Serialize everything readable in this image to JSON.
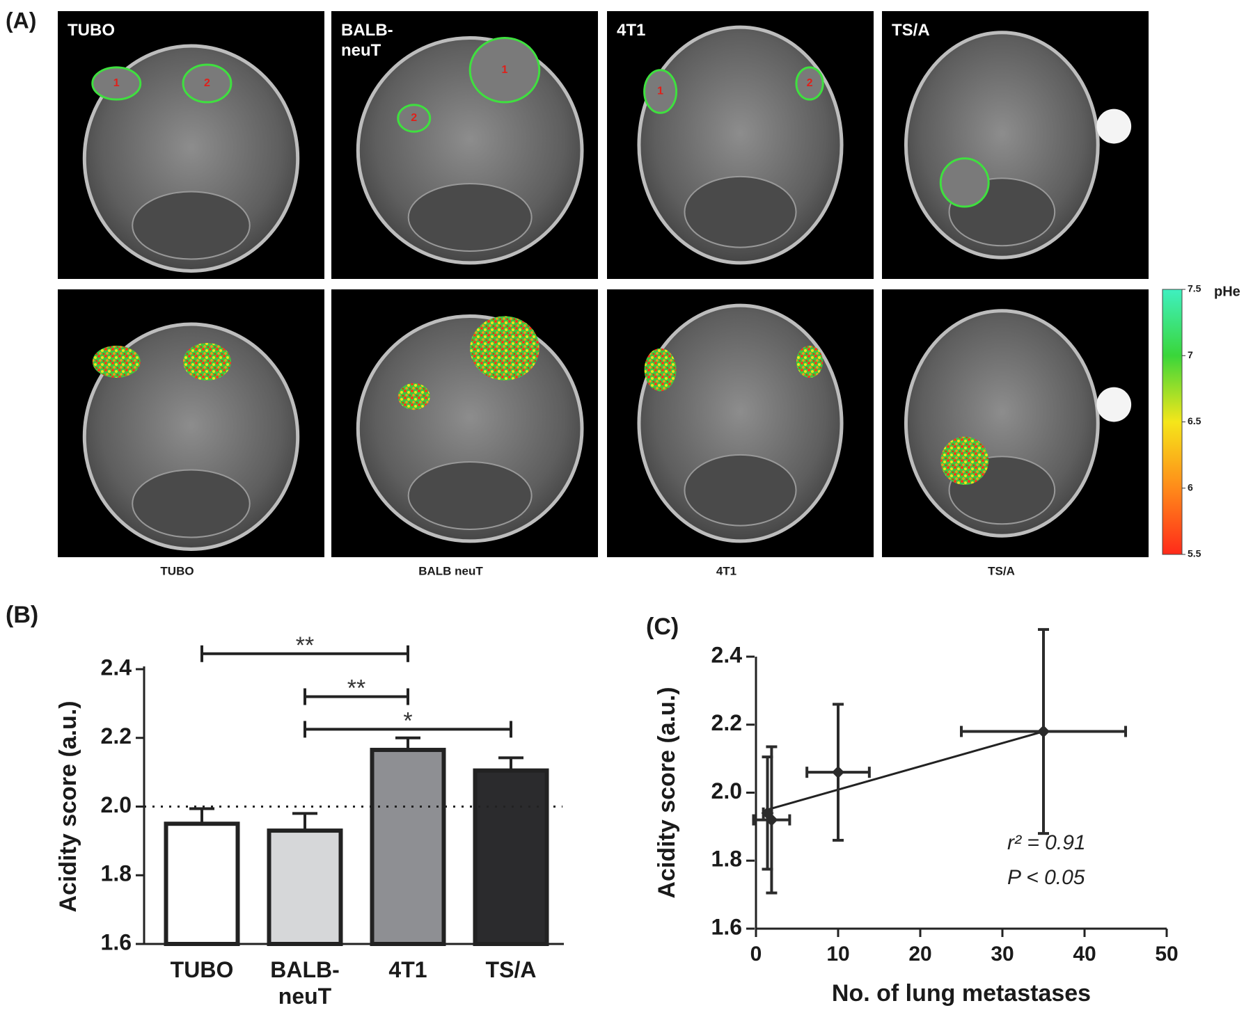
{
  "panel_a": {
    "label": "(A)",
    "top_row": [
      {
        "label": "TUBO",
        "rois": [
          "1",
          "2"
        ]
      },
      {
        "label": "BALB-neuT",
        "rois": [
          "1",
          "2"
        ]
      },
      {
        "label": "4T1",
        "rois": [
          "1",
          "2"
        ]
      },
      {
        "label": "TS/A",
        "rois": []
      }
    ],
    "bottom_labels": [
      "TUBO",
      "BALB neuT",
      "4T1",
      "TS/A"
    ],
    "colorbar": {
      "title": "pHe",
      "lim": [
        5.5,
        7.5
      ],
      "ticks": [
        5.5,
        6,
        6.5,
        7,
        7.5
      ],
      "colors": [
        "#ff2a1a",
        "#ff8a1a",
        "#f5e61a",
        "#3ad63a",
        "#3ff0c0"
      ]
    }
  },
  "chart_data": [
    {
      "type": "bar",
      "panel_label": "(B)",
      "ylabel": "Acidity score (a.u.)",
      "categories": [
        "TUBO",
        "BALB-neuT",
        "4T1",
        "TS/A"
      ],
      "values": [
        1.95,
        1.93,
        2.165,
        2.105
      ],
      "errors": [
        0.044,
        0.05,
        0.035,
        0.037
      ],
      "colors": [
        "#ffffff",
        "#d6d7d9",
        "#8e8f93",
        "#2b2b2d"
      ],
      "ylim": [
        1.6,
        2.4
      ],
      "yticks": [
        1.6,
        1.8,
        {
          "value": 2,
          "label": "2.0"
        },
        2.2,
        2.4
      ],
      "reference_line": 2,
      "significance": [
        {
          "from": 0,
          "to": 2,
          "y": 2.445,
          "label": "**"
        },
        {
          "from": 1,
          "to": 2,
          "y": 2.32,
          "label": "**"
        },
        {
          "from": 1,
          "to": 3,
          "y": 2.225,
          "label": "*"
        }
      ]
    },
    {
      "type": "scatter",
      "panel_label": "(C)",
      "xlabel": "No. of lung metastases",
      "ylabel": "Acidity score (a.u.)",
      "x": [
        1.4,
        1.9,
        10,
        35
      ],
      "y": [
        1.94,
        1.92,
        2.06,
        2.18
      ],
      "xerr": [
        0.5,
        2.2,
        3.8,
        10
      ],
      "yerr": [
        0.165,
        0.215,
        0.2,
        0.3
      ],
      "color": "#2b2b2b",
      "xlim": [
        0,
        50
      ],
      "xticks": [
        0,
        10,
        20,
        30,
        40,
        50
      ],
      "ylim": [
        1.6,
        2.4
      ],
      "yticks": [
        1.6,
        1.8,
        {
          "value": 2,
          "label": "2.0"
        },
        2.2,
        2.4
      ],
      "trend_line": {
        "x": [
          1.4,
          35
        ],
        "y": [
          1.95,
          2.18
        ]
      },
      "annotations": [
        "r² = 0.91",
        "P < 0.05"
      ]
    }
  ]
}
